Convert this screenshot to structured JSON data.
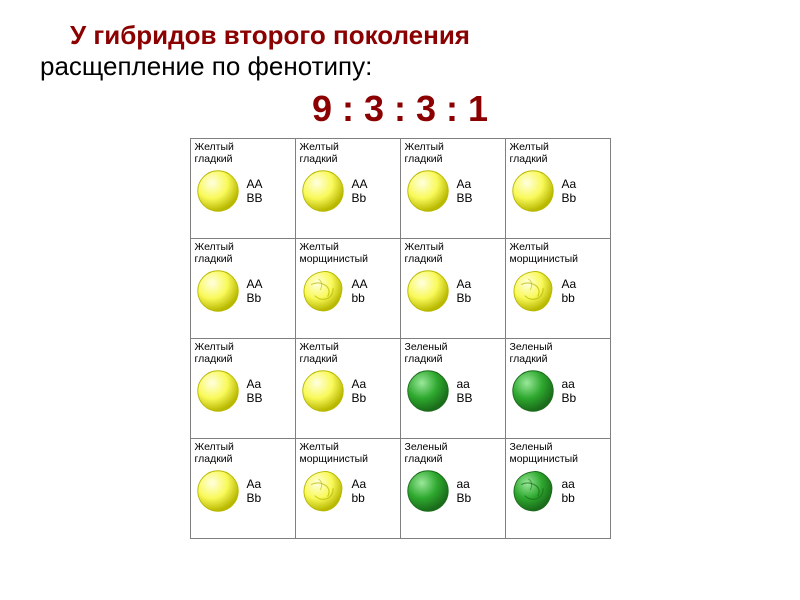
{
  "title": {
    "line1": "У гибридов второго поколения",
    "line2": "расщепление по фенотипу:",
    "line1_color": "#8b0000",
    "line2_color": "#000000",
    "fontsize": 26
  },
  "ratio": {
    "text": "9 : 3 : 3 : 1",
    "color": "#8b0000",
    "fontsize": 36
  },
  "colors": {
    "yellow_fill": "#f9f95a",
    "yellow_highlight": "#ffffe0",
    "yellow_stroke": "#b8b800",
    "green_fill": "#2ea82e",
    "green_highlight": "#9ae89a",
    "green_stroke": "#1a6b1a",
    "cell_border": "#808080"
  },
  "phenotype_labels": {
    "yellow_smooth": "Желтый\nгладкий",
    "yellow_wrinkled": "Желтый\nморщинистый",
    "green_smooth": "Зеленый\nгладкий",
    "green_wrinkled": "Зеленый\nморщинистый"
  },
  "grid": {
    "rows": 4,
    "cols": 4,
    "cells": [
      [
        {
          "pheno": "yellow_smooth",
          "geno1": "AA",
          "geno2": "BB",
          "color": "yellow",
          "shape": "smooth"
        },
        {
          "pheno": "yellow_smooth",
          "geno1": "AA",
          "geno2": "Bb",
          "color": "yellow",
          "shape": "smooth"
        },
        {
          "pheno": "yellow_smooth",
          "geno1": "Aa",
          "geno2": "BB",
          "color": "yellow",
          "shape": "smooth"
        },
        {
          "pheno": "yellow_smooth",
          "geno1": "Aa",
          "geno2": "Bb",
          "color": "yellow",
          "shape": "smooth"
        }
      ],
      [
        {
          "pheno": "yellow_smooth",
          "geno1": "AA",
          "geno2": "Bb",
          "color": "yellow",
          "shape": "smooth"
        },
        {
          "pheno": "yellow_wrinkled",
          "geno1": "AA",
          "geno2": "bb",
          "color": "yellow",
          "shape": "wrinkled"
        },
        {
          "pheno": "yellow_smooth",
          "geno1": "Aa",
          "geno2": "Bb",
          "color": "yellow",
          "shape": "smooth"
        },
        {
          "pheno": "yellow_wrinkled",
          "geno1": "Aa",
          "geno2": "bb",
          "color": "yellow",
          "shape": "wrinkled"
        }
      ],
      [
        {
          "pheno": "yellow_smooth",
          "geno1": "Aa",
          "geno2": "BB",
          "color": "yellow",
          "shape": "smooth"
        },
        {
          "pheno": "yellow_smooth",
          "geno1": "Aa",
          "geno2": "Bb",
          "color": "yellow",
          "shape": "smooth"
        },
        {
          "pheno": "green_smooth",
          "geno1": "aa",
          "geno2": "BB",
          "color": "green",
          "shape": "smooth"
        },
        {
          "pheno": "green_smooth",
          "geno1": "aa",
          "geno2": "Bb",
          "color": "green",
          "shape": "smooth"
        }
      ],
      [
        {
          "pheno": "yellow_smooth",
          "geno1": "Aa",
          "geno2": "Bb",
          "color": "yellow",
          "shape": "smooth"
        },
        {
          "pheno": "yellow_wrinkled",
          "geno1": "Aa",
          "geno2": "bb",
          "color": "yellow",
          "shape": "wrinkled"
        },
        {
          "pheno": "green_smooth",
          "geno1": "aa",
          "geno2": "Bb",
          "color": "green",
          "shape": "smooth"
        },
        {
          "pheno": "green_wrinkled",
          "geno1": "aa",
          "geno2": "bb",
          "color": "green",
          "shape": "wrinkled"
        }
      ]
    ]
  }
}
